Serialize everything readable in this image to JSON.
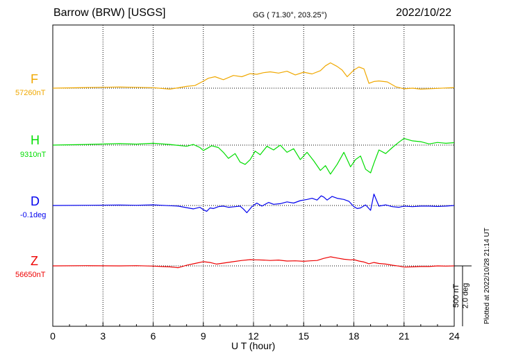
{
  "header": {
    "station": "Barrow (BRW)  [USGS]",
    "coords": "GG ( 71.30°, 203.25°)",
    "date": "2022/10/22"
  },
  "side_note": "Plotted at 2022/10/28 21:14 UT",
  "scale_label_1": "500 nT",
  "scale_label_2": "2.0 deg",
  "chart_data": {
    "type": "line",
    "xlabel": "U T (hour)",
    "x_ticks": [
      "0",
      "3",
      "6",
      "9",
      "12",
      "15",
      "18",
      "21",
      "24"
    ],
    "xlim": [
      0,
      24
    ],
    "grid": true,
    "series": [
      {
        "name": "F",
        "baseline_label": "57260nT",
        "color": "#f0a800",
        "x": [
          0,
          2,
          4,
          6,
          7,
          7.5,
          8,
          8.5,
          9,
          9.3,
          9.7,
          10.2,
          10.8,
          11.3,
          11.8,
          12.2,
          12.6,
          13,
          13.5,
          14,
          14.5,
          15,
          15.5,
          16,
          16.3,
          16.6,
          17,
          17.3,
          17.6,
          18,
          18.3,
          18.6,
          18.9,
          19.2,
          19.5,
          20,
          20.5,
          21,
          21.5,
          22,
          23,
          24
        ],
        "y": [
          0,
          5,
          10,
          4,
          -8,
          3,
          15,
          22,
          58,
          82,
          95,
          70,
          105,
          95,
          120,
          115,
          128,
          135,
          125,
          140,
          110,
          132,
          118,
          145,
          185,
          210,
          180,
          150,
          95,
          150,
          175,
          160,
          40,
          55,
          60,
          52,
          12,
          -5,
          0,
          -8,
          -2,
          5
        ]
      },
      {
        "name": "H",
        "baseline_label": "9310nT",
        "color": "#00dd00",
        "x": [
          0,
          2,
          4,
          5,
          6,
          7,
          8,
          8.4,
          8.8,
          9,
          9.2,
          9.5,
          9.9,
          10.2,
          10.5,
          10.9,
          11.2,
          11.5,
          11.8,
          12.1,
          12.4,
          12.8,
          13.2,
          13.6,
          14,
          14.4,
          14.8,
          15.2,
          15.6,
          16,
          16.3,
          16.6,
          17,
          17.4,
          17.8,
          18.1,
          18.4,
          18.7,
          19,
          19.2,
          19.5,
          19.9,
          20.3,
          20.7,
          21,
          21.5,
          22,
          22.5,
          23,
          23.5,
          24
        ],
        "y": [
          0,
          5,
          12,
          8,
          15,
          5,
          -10,
          5,
          -20,
          -45,
          -30,
          -5,
          -20,
          -60,
          -110,
          -70,
          -140,
          -160,
          -120,
          -50,
          -80,
          -10,
          -40,
          0,
          -60,
          -30,
          -120,
          -60,
          -130,
          -210,
          -170,
          -240,
          -160,
          -60,
          -180,
          -120,
          -90,
          -200,
          -230,
          -150,
          -40,
          -70,
          -20,
          25,
          55,
          35,
          28,
          10,
          22,
          15,
          20
        ]
      },
      {
        "name": "D",
        "baseline_label": "-0.1deg",
        "color": "#0000ee",
        "x": [
          0,
          2,
          4,
          5,
          6,
          7,
          7.5,
          8,
          8.4,
          8.8,
          9,
          9.2,
          9.4,
          9.6,
          9.9,
          10.2,
          10.5,
          10.9,
          11.2,
          11.4,
          11.6,
          11.9,
          12.2,
          12.5,
          12.9,
          13.2,
          13.6,
          14,
          14.4,
          14.8,
          15.2,
          15.5,
          15.8,
          16.05,
          16.2,
          16.4,
          16.7,
          17,
          17.4,
          17.7,
          18,
          18.2,
          18.4,
          18.7,
          19,
          19.2,
          19.5,
          19.9,
          20.3,
          20.7,
          21,
          21.5,
          22,
          22.5,
          23,
          23.5,
          24
        ],
        "y": [
          0,
          2,
          4,
          2,
          5,
          -2,
          -5,
          -18,
          -28,
          -15,
          -35,
          -48,
          -20,
          -25,
          -10,
          -5,
          -15,
          -10,
          -5,
          -30,
          -60,
          -10,
          20,
          -5,
          25,
          10,
          15,
          30,
          20,
          40,
          50,
          60,
          45,
          80,
          70,
          45,
          75,
          60,
          50,
          35,
          -10,
          -25,
          -20,
          5,
          -40,
          95,
          -5,
          5,
          -10,
          -15,
          -5,
          -10,
          -5,
          -5,
          -8,
          -5,
          0
        ]
      },
      {
        "name": "Z",
        "baseline_label": "56650nT",
        "color": "#ee0000",
        "x": [
          0,
          2,
          4,
          5,
          6,
          6.5,
          7,
          7.5,
          8,
          8.5,
          9,
          9.4,
          9.8,
          10.3,
          10.8,
          11.3,
          11.8,
          12.2,
          12.6,
          13,
          13.5,
          14,
          14.5,
          15,
          15.4,
          15.8,
          16.2,
          16.6,
          17,
          17.4,
          17.8,
          18,
          18.3,
          18.6,
          18.9,
          19.2,
          19.5,
          19.9,
          20.3,
          20.7,
          21,
          21.5,
          22,
          22.5,
          23,
          23.5,
          24
        ],
        "y": [
          0,
          2,
          0,
          2,
          -2,
          -5,
          -8,
          -15,
          5,
          20,
          35,
          28,
          15,
          25,
          35,
          45,
          52,
          50,
          48,
          45,
          48,
          40,
          42,
          38,
          42,
          45,
          62,
          75,
          65,
          55,
          50,
          52,
          40,
          32,
          18,
          28,
          20,
          15,
          6,
          -2,
          -10,
          -8,
          -5,
          -5,
          0,
          -2,
          0
        ]
      }
    ]
  }
}
